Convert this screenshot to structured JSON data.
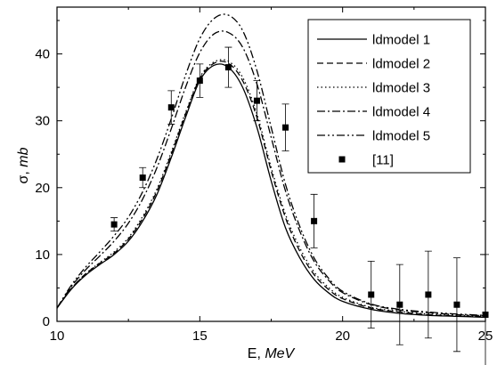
{
  "chart_data": {
    "type": "line",
    "xlabel": {
      "main": "E, ",
      "unit": "MeV"
    },
    "ylabel": {
      "main": "σ, ",
      "unit": "mb"
    },
    "xlim": [
      10,
      25
    ],
    "ylim": [
      0,
      47
    ],
    "xticks": [
      10,
      15,
      20,
      25
    ],
    "xtick_labels": [
      "10",
      "15",
      "20",
      "25"
    ],
    "yticks": [
      0,
      10,
      20,
      30,
      40
    ],
    "ytick_labels": [
      "0",
      "10",
      "20",
      "30",
      "40"
    ],
    "grid": false,
    "legend_position": "top-right",
    "series": [
      {
        "name": "ldmodel 1",
        "style": "solid",
        "x": [
          10,
          10.5,
          11,
          11.5,
          12,
          12.5,
          13,
          13.5,
          14,
          14.5,
          15,
          15.5,
          16,
          16.5,
          17,
          17.5,
          18,
          18.5,
          19,
          19.5,
          20,
          21,
          22,
          23,
          24,
          25
        ],
        "y": [
          2.0,
          4.8,
          6.9,
          8.5,
          10.0,
          12.0,
          15.0,
          19.0,
          24.5,
          30.5,
          36.0,
          38.3,
          38.0,
          35.0,
          29.0,
          21.0,
          14.0,
          9.5,
          6.3,
          4.3,
          3.0,
          1.8,
          1.2,
          0.9,
          0.75,
          0.6
        ]
      },
      {
        "name": "ldmodel 2",
        "style": "dashed",
        "x": [
          10,
          10.5,
          11,
          11.5,
          12,
          12.5,
          13,
          13.5,
          14,
          14.5,
          15,
          15.5,
          16,
          16.5,
          17,
          17.5,
          18,
          18.5,
          19,
          19.5,
          20,
          21,
          22,
          23,
          24,
          25
        ],
        "y": [
          2.0,
          4.9,
          7.1,
          8.7,
          10.2,
          12.3,
          15.4,
          19.5,
          25.0,
          31.0,
          36.3,
          38.6,
          38.6,
          36.0,
          30.5,
          22.5,
          15.5,
          10.5,
          7.0,
          4.8,
          3.4,
          2.0,
          1.4,
          1.0,
          0.8,
          0.7
        ]
      },
      {
        "name": "ldmodel 3",
        "style": "dotted",
        "x": [
          10,
          10.5,
          11,
          11.5,
          12,
          12.5,
          13,
          13.5,
          14,
          14.5,
          15,
          15.5,
          16,
          16.5,
          17,
          17.5,
          18,
          18.5,
          19,
          19.5,
          20,
          21,
          22,
          23,
          24,
          25
        ],
        "y": [
          2.0,
          4.9,
          7.1,
          8.8,
          10.4,
          12.5,
          15.7,
          19.8,
          25.3,
          31.2,
          36.5,
          38.8,
          38.9,
          36.5,
          31.0,
          23.0,
          16.0,
          11.0,
          7.4,
          5.1,
          3.6,
          2.1,
          1.5,
          1.1,
          0.9,
          0.75
        ]
      },
      {
        "name": "ldmodel 4",
        "style": "dashdot",
        "x": [
          10,
          10.5,
          11,
          11.5,
          12,
          12.5,
          13,
          13.5,
          14,
          14.5,
          15,
          15.5,
          16,
          16.5,
          17,
          17.5,
          18,
          18.5,
          19,
          19.5,
          20,
          21,
          22,
          23,
          24,
          25
        ],
        "y": [
          2.0,
          5.2,
          7.7,
          9.8,
          12.0,
          14.7,
          18.3,
          23.0,
          28.8,
          35.0,
          40.2,
          43.0,
          43.2,
          41.0,
          35.5,
          27.5,
          19.5,
          13.5,
          9.0,
          6.2,
          4.3,
          2.5,
          1.7,
          1.3,
          1.0,
          0.85
        ]
      },
      {
        "name": "ldmodel 5",
        "style": "dashdotdot",
        "x": [
          10,
          10.5,
          11,
          11.5,
          12,
          12.5,
          13,
          13.5,
          14,
          14.5,
          15,
          15.5,
          16,
          16.5,
          17,
          17.5,
          18,
          18.5,
          19,
          19.5,
          20,
          21,
          22,
          23,
          24,
          25
        ],
        "y": [
          2.0,
          5.4,
          8.1,
          10.4,
          12.8,
          15.6,
          19.4,
          24.3,
          30.3,
          36.8,
          42.3,
          45.3,
          45.8,
          43.5,
          37.5,
          29.0,
          20.5,
          14.2,
          9.5,
          6.5,
          4.5,
          2.6,
          1.8,
          1.4,
          1.1,
          0.9
        ]
      }
    ],
    "points": {
      "name": "[11]",
      "style": "square-marker",
      "data": [
        {
          "x": 12,
          "y": 14.5,
          "err": 1.0
        },
        {
          "x": 13,
          "y": 21.5,
          "err": 1.5
        },
        {
          "x": 14,
          "y": 32.0,
          "err": 2.5
        },
        {
          "x": 15,
          "y": 36.0,
          "err": 2.5
        },
        {
          "x": 16,
          "y": 38.0,
          "err": 3.0
        },
        {
          "x": 17,
          "y": 33.0,
          "err": 3.0
        },
        {
          "x": 18,
          "y": 29.0,
          "err": 3.5
        },
        {
          "x": 19,
          "y": 15.0,
          "err": 4.0
        },
        {
          "x": 21,
          "y": 4.0,
          "err": 5.0
        },
        {
          "x": 22,
          "y": 2.5,
          "err": 6.0
        },
        {
          "x": 23,
          "y": 4.0,
          "err": 6.5
        },
        {
          "x": 24,
          "y": 2.5,
          "err": 7.0
        },
        {
          "x": 25,
          "y": 1.0,
          "err": 9.0
        }
      ]
    }
  }
}
